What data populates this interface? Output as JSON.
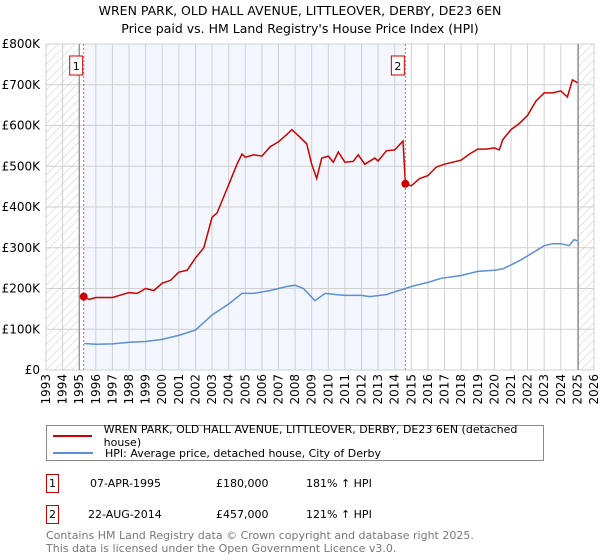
{
  "chart_data": {
    "type": "line",
    "title": "WREN PARK, OLD HALL AVENUE, LITTLEOVER, DERBY, DE23 6EN",
    "subtitle": "Price paid vs. HM Land Registry's House Price Index (HPI)",
    "xlim": [
      1993,
      2026
    ],
    "ylim": [
      0,
      800000
    ],
    "x_ticks": [
      "1993",
      "1994",
      "1995",
      "1996",
      "1997",
      "1998",
      "1999",
      "2000",
      "2001",
      "2002",
      "2003",
      "2004",
      "2005",
      "2006",
      "2007",
      "2008",
      "2009",
      "2010",
      "2011",
      "2012",
      "2013",
      "2014",
      "2015",
      "2016",
      "2017",
      "2018",
      "2019",
      "2020",
      "2021",
      "2022",
      "2023",
      "2024",
      "2025",
      "2026"
    ],
    "y_ticks": [
      {
        "v": 0,
        "label": "£0"
      },
      {
        "v": 100000,
        "label": "£100K"
      },
      {
        "v": 200000,
        "label": "£200K"
      },
      {
        "v": 300000,
        "label": "£300K"
      },
      {
        "v": 400000,
        "label": "£400K"
      },
      {
        "v": 500000,
        "label": "£500K"
      },
      {
        "v": 600000,
        "label": "£600K"
      },
      {
        "v": 700000,
        "label": "£700K"
      },
      {
        "v": 800000,
        "label": "£800K"
      }
    ],
    "grid": true,
    "hatched_ranges": [
      [
        1993,
        1995
      ],
      [
        2025.05,
        2026
      ]
    ],
    "shaded_range": [
      1995.27,
      2014.64
    ],
    "series": [
      {
        "name": "WREN PARK, OLD HALL AVENUE, LITTLEOVER, DERBY, DE23 6EN (detached house)",
        "color": "#cc0000",
        "x": [
          1995.27,
          1995.6,
          1996,
          1997,
          1998,
          1998.5,
          1999,
          1999.5,
          2000,
          2000.5,
          2001,
          2001.5,
          2002,
          2002.5,
          2003,
          2003.3,
          2004,
          2004.5,
          2004.8,
          2005,
          2005.5,
          2006,
          2006.5,
          2007,
          2007.5,
          2007.8,
          2008.2,
          2008.7,
          2009,
          2009.3,
          2009.6,
          2010,
          2010.3,
          2010.6,
          2011,
          2011.5,
          2011.8,
          2012.2,
          2012.8,
          2013,
          2013.5,
          2014,
          2014.5,
          2014.64,
          2015,
          2015.5,
          2016,
          2016.5,
          2017,
          2017.5,
          2018,
          2018.5,
          2019,
          2019.5,
          2020,
          2020.3,
          2020.5,
          2021,
          2021.5,
          2022,
          2022.5,
          2023,
          2023.5,
          2024,
          2024.4,
          2024.7,
          2025
        ],
        "y": [
          180000,
          173000,
          178000,
          178000,
          190000,
          188000,
          200000,
          195000,
          213000,
          220000,
          240000,
          245000,
          275000,
          300000,
          375000,
          385000,
          455000,
          505000,
          530000,
          522000,
          528000,
          525000,
          548000,
          560000,
          578000,
          590000,
          575000,
          555000,
          505000,
          470000,
          520000,
          525000,
          510000,
          535000,
          510000,
          512000,
          528000,
          505000,
          520000,
          513000,
          538000,
          540000,
          562000,
          457000,
          452000,
          470000,
          477000,
          498000,
          505000,
          510000,
          515000,
          530000,
          542000,
          542000,
          545000,
          540000,
          565000,
          590000,
          605000,
          625000,
          660000,
          680000,
          680000,
          685000,
          670000,
          712000,
          705000
        ]
      },
      {
        "name": "HPI: Average price, detached house, City of Derby",
        "color": "#5b8fd6",
        "x": [
          1995.3,
          1996,
          1997,
          1998,
          1999,
          2000,
          2001,
          2002,
          2003,
          2004,
          2004.8,
          2005.5,
          2006.5,
          2007.5,
          2008,
          2008.5,
          2009.2,
          2009.8,
          2010.5,
          2011,
          2012,
          2012.5,
          2013.5,
          2014,
          2014.64,
          2015,
          2016,
          2016.8,
          2018,
          2019,
          2020,
          2020.5,
          2021,
          2021.5,
          2022,
          2023,
          2023.5,
          2024,
          2024.5,
          2024.8,
          2025
        ],
        "y": [
          65000,
          63000,
          64000,
          68000,
          70000,
          75000,
          85000,
          98000,
          135000,
          162000,
          188000,
          188000,
          195000,
          205000,
          208000,
          200000,
          170000,
          188000,
          185000,
          183000,
          183000,
          180000,
          185000,
          192000,
          200000,
          205000,
          215000,
          225000,
          232000,
          242000,
          245000,
          248000,
          258000,
          268000,
          280000,
          305000,
          310000,
          310000,
          305000,
          320000,
          317000
        ]
      }
    ],
    "annotations": [
      {
        "label": "1",
        "x": 1995.27,
        "y": 180000
      },
      {
        "label": "2",
        "x": 2014.64,
        "y": 457000
      }
    ]
  },
  "legend": {
    "items": [
      {
        "label": "WREN PARK, OLD HALL AVENUE, LITTLEOVER, DERBY, DE23 6EN (detached house)",
        "color": "#cc0000"
      },
      {
        "label": "HPI: Average price, detached house, City of Derby",
        "color": "#5b8fd6"
      }
    ]
  },
  "sales": [
    {
      "num": "1",
      "date": "07-APR-1995",
      "price": "£180,000",
      "hpi": "181% ↑ HPI"
    },
    {
      "num": "2",
      "date": "22-AUG-2014",
      "price": "£457,000",
      "hpi": "121% ↑ HPI"
    }
  ],
  "footer": {
    "line1": "Contains HM Land Registry data © Crown copyright and database right 2025.",
    "line2": "This data is licensed under the Open Government Licence v3.0."
  }
}
